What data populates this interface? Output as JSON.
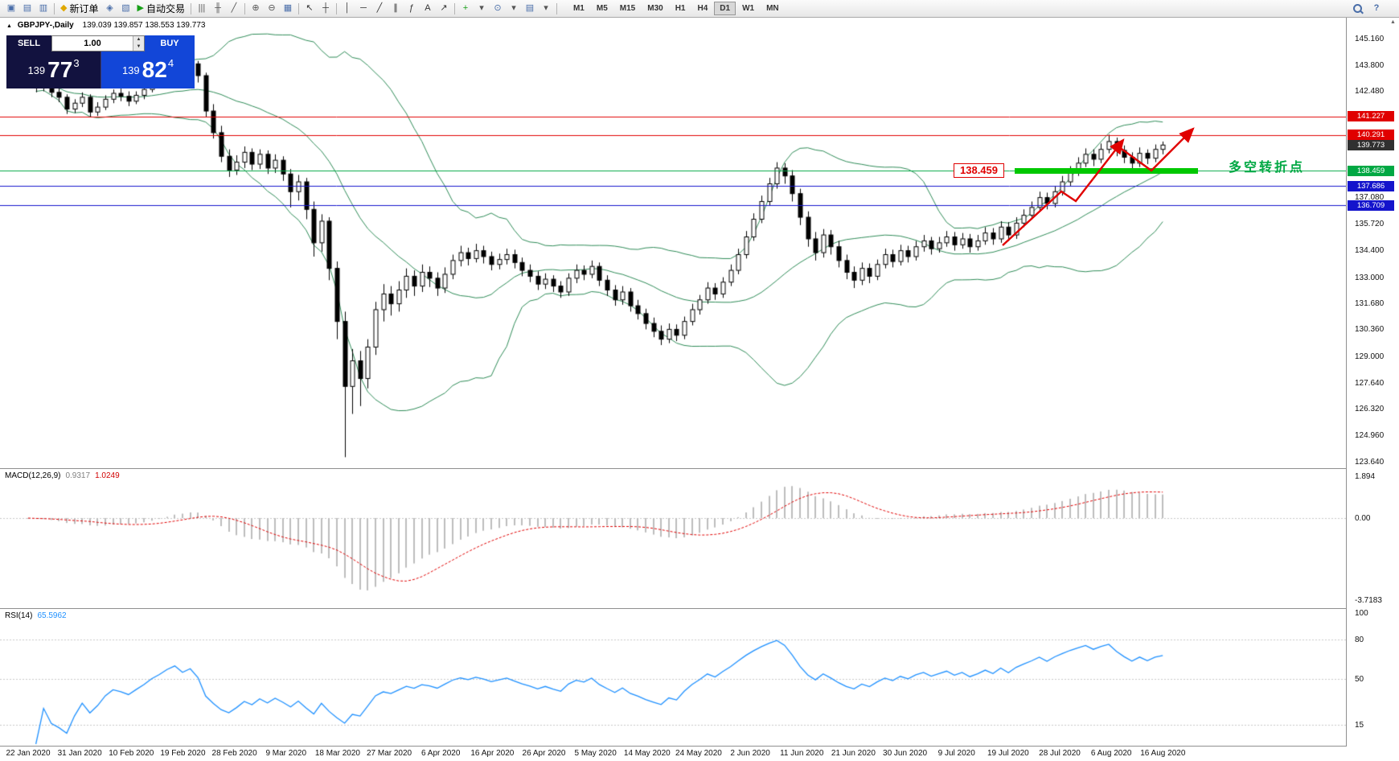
{
  "icons": {
    "collapse": "▲",
    "spin_up": "▲",
    "spin_down": "▼",
    "scroll_up": "▲"
  },
  "toolbar": {
    "items": [
      {
        "name": "new-chart-icon",
        "glyph": "▣",
        "color": "#4a6ea9"
      },
      {
        "name": "profiles-icon",
        "glyph": "▤",
        "color": "#4a6ea9"
      },
      {
        "name": "market-watch-icon",
        "glyph": "▥",
        "color": "#4a6ea9"
      },
      {
        "sep": true
      },
      {
        "name": "new-order-button",
        "glyph": "◆",
        "color": "#e0a800",
        "label": "新订单"
      },
      {
        "name": "chart-window-icon",
        "glyph": "◈",
        "color": "#4a6ea9"
      },
      {
        "name": "terminal-icon",
        "glyph": "▧",
        "color": "#4a6ea9"
      },
      {
        "name": "autotrading-button",
        "glyph": "▶",
        "color": "#18a018",
        "label": "自动交易"
      },
      {
        "sep": true
      },
      {
        "name": "bar-chart-icon",
        "glyph": "|||",
        "color": "#555555"
      },
      {
        "name": "candlestick-chart-icon",
        "glyph": "╫",
        "color": "#555555"
      },
      {
        "name": "line-chart-icon",
        "glyph": "╱",
        "color": "#555555"
      },
      {
        "sep": true
      },
      {
        "name": "zoom-in-icon",
        "glyph": "⊕",
        "color": "#555555"
      },
      {
        "name": "zoom-out-icon",
        "glyph": "⊖",
        "color": "#555555"
      },
      {
        "name": "tile-windows-icon",
        "glyph": "▦",
        "color": "#4a6ea9"
      },
      {
        "sep": true
      },
      {
        "name": "cursor-icon",
        "glyph": "↖",
        "color": "#333333"
      },
      {
        "name": "crosshair-icon",
        "glyph": "┼",
        "color": "#333333"
      },
      {
        "sep": true
      },
      {
        "name": "vertical-line-icon",
        "glyph": "│",
        "color": "#333333"
      },
      {
        "name": "horizontal-line-icon",
        "glyph": "─",
        "color": "#333333"
      },
      {
        "name": "trendline-icon",
        "glyph": "╱",
        "color": "#333333"
      },
      {
        "name": "equidistant-channel-icon",
        "glyph": "∥",
        "color": "#333333"
      },
      {
        "name": "fibonacci-icon",
        "glyph": "ƒ",
        "color": "#333333"
      },
      {
        "name": "text-label-icon",
        "glyph": "A",
        "color": "#333333"
      },
      {
        "name": "arrows-objects-icon",
        "glyph": "↗",
        "color": "#333333"
      },
      {
        "sep": true
      },
      {
        "name": "indicators-icon",
        "glyph": "+",
        "color": "#18a018"
      },
      {
        "name": "indicators-dropdown-icon",
        "glyph": "▾",
        "color": "#555555"
      },
      {
        "name": "periods-icon",
        "glyph": "⊙",
        "color": "#4a6ea9"
      },
      {
        "name": "periods-dropdown-icon",
        "glyph": "▾",
        "color": "#555555"
      },
      {
        "name": "templates-icon",
        "glyph": "▤",
        "color": "#4a6ea9"
      },
      {
        "name": "templates-dropdown-icon",
        "glyph": "▾",
        "color": "#555555"
      },
      {
        "sep": true
      }
    ],
    "timeframes": [
      "M1",
      "M5",
      "M15",
      "M30",
      "H1",
      "H4",
      "D1",
      "W1",
      "MN"
    ],
    "active_timeframe": "D1",
    "right_items": [
      {
        "name": "search-button",
        "icon": "mag"
      },
      {
        "name": "help-button",
        "glyph": "?",
        "color": "#4a6ea9"
      }
    ]
  },
  "chart": {
    "symbol_title": "GBPJPY-,Daily",
    "ohlc_line": "139.039 139.857 138.553 139.773"
  },
  "trade": {
    "sell_label": "SELL",
    "buy_label": "BUY",
    "volume": "1.00",
    "sell_prefix": "139",
    "sell_big": "77",
    "sell_sup": "3",
    "buy_prefix": "139",
    "buy_big": "82",
    "buy_sup": "4"
  },
  "levels": [
    {
      "label": "141.227",
      "price": 141.227,
      "line": "solid",
      "color": "#E00000",
      "tag_bg": "#E00000"
    },
    {
      "label": "140.291",
      "price": 140.291,
      "line": "solid",
      "color": "#E00000",
      "tag_bg": "#E00000"
    },
    {
      "label": "139.773",
      "price": 139.773,
      "line": "none",
      "color": "#303030",
      "tag_bg": "#303030"
    },
    {
      "label": "138.459",
      "price": 138.459,
      "line": "solid",
      "color": "#00A843",
      "tag_bg": "#00A843"
    },
    {
      "label": "137.686",
      "price": 137.686,
      "line": "solid",
      "color": "#1414CC",
      "tag_bg": "#1414CC"
    },
    {
      "label": "136.709",
      "price": 136.709,
      "line": "solid",
      "color": "#1414CC",
      "tag_bg": "#1414CC"
    }
  ],
  "annotations": {
    "callout": "138.459",
    "turning_point": "多空转折点",
    "turning_point_color": "#00A843",
    "zone_color": "#00C800",
    "arrow_color": "#E00000"
  },
  "axis": {
    "price_ticks": [
      "145.160",
      "143.800",
      "142.480",
      "137.080",
      "135.720",
      "134.400",
      "133.000",
      "131.680",
      "130.360",
      "129.000",
      "127.640",
      "126.320",
      "124.960",
      "123.640"
    ],
    "dates": [
      "22 Jan 2020",
      "31 Jan 2020",
      "10 Feb 2020",
      "19 Feb 2020",
      "28 Feb 2020",
      "9 Mar 2020",
      "18 Mar 2020",
      "27 Mar 2020",
      "6 Apr 2020",
      "16 Apr 2020",
      "26 Apr 2020",
      "5 May 2020",
      "14 May 2020",
      "24 May 2020",
      "2 Jun 2020",
      "11 Jun 2020",
      "21 Jun 2020",
      "30 Jun 2020",
      "9 Jul 2020",
      "19 Jul 2020",
      "28 Jul 2020",
      "6 Aug 2020",
      "16 Aug 2020"
    ]
  },
  "macd": {
    "name": "MACD(12,26,9)",
    "value_main": "0.9317",
    "value_signal": "1.0249",
    "ticks": [
      "1.894",
      "0.00",
      "-3.7183"
    ],
    "histogram_color": "#BDBDBD",
    "signal_color": "#E00000"
  },
  "rsi": {
    "name": "RSI(14)",
    "value": "65.5962",
    "ticks": [
      "100",
      "80",
      "50",
      "15"
    ],
    "line_color": "#1E90FF"
  },
  "chart_data": {
    "type": "candlestick",
    "symbol": "GBPJPY-",
    "period": "Daily",
    "indicators": [
      "Bollinger Bands(20,2)",
      "MACD(12,26,9)",
      "RSI(14)"
    ],
    "bollinger_color": "#2E8B57",
    "ylim": [
      123.3,
      146.0
    ],
    "candles": [
      [
        143.4,
        143.65,
        142.85,
        143.1
      ],
      [
        143.1,
        143.25,
        142.45,
        142.7
      ],
      [
        142.7,
        143.05,
        142.5,
        142.85
      ],
      [
        142.85,
        142.95,
        142.2,
        142.45
      ],
      [
        142.45,
        142.7,
        141.95,
        142.2
      ],
      [
        142.2,
        142.35,
        141.35,
        141.6
      ],
      [
        141.6,
        142.1,
        141.4,
        141.9
      ],
      [
        141.9,
        142.45,
        141.7,
        142.2
      ],
      [
        142.2,
        142.35,
        141.2,
        141.45
      ],
      [
        141.45,
        141.95,
        141.25,
        141.7
      ],
      [
        141.7,
        142.3,
        141.55,
        142.1
      ],
      [
        142.1,
        142.6,
        141.9,
        142.4
      ],
      [
        142.4,
        142.65,
        142.0,
        142.25
      ],
      [
        142.25,
        142.5,
        141.75,
        142.0
      ],
      [
        142.0,
        142.5,
        141.85,
        142.3
      ],
      [
        142.3,
        142.8,
        142.1,
        142.6
      ],
      [
        142.6,
        143.2,
        142.45,
        143.0
      ],
      [
        143.0,
        143.55,
        142.8,
        143.3
      ],
      [
        143.3,
        143.9,
        143.1,
        143.7
      ],
      [
        143.7,
        144.25,
        143.45,
        144.0
      ],
      [
        144.0,
        144.3,
        143.35,
        143.6
      ],
      [
        143.6,
        144.15,
        143.4,
        143.9
      ],
      [
        143.9,
        144.05,
        142.95,
        143.3
      ],
      [
        143.3,
        143.45,
        141.2,
        141.5
      ],
      [
        141.5,
        141.85,
        140.1,
        140.4
      ],
      [
        140.4,
        140.75,
        138.9,
        139.2
      ],
      [
        139.2,
        139.55,
        138.15,
        138.5
      ],
      [
        138.5,
        139.25,
        138.25,
        138.9
      ],
      [
        138.9,
        139.7,
        138.6,
        139.4
      ],
      [
        139.4,
        139.6,
        138.5,
        138.8
      ],
      [
        138.8,
        139.55,
        138.55,
        139.3
      ],
      [
        139.3,
        139.5,
        138.3,
        138.6
      ],
      [
        138.6,
        139.3,
        138.35,
        139.0
      ],
      [
        139.0,
        139.2,
        137.95,
        138.3
      ],
      [
        138.3,
        138.55,
        136.6,
        137.4
      ],
      [
        137.4,
        138.25,
        136.95,
        137.9
      ],
      [
        137.9,
        138.1,
        136.0,
        136.5
      ],
      [
        136.5,
        136.9,
        134.1,
        134.8
      ],
      [
        134.8,
        136.25,
        134.35,
        135.9
      ],
      [
        135.9,
        136.1,
        132.9,
        133.5
      ],
      [
        133.5,
        133.85,
        129.9,
        130.8
      ],
      [
        130.8,
        131.3,
        123.9,
        127.5
      ],
      [
        127.5,
        129.4,
        126.1,
        128.8
      ],
      [
        128.8,
        129.3,
        126.5,
        127.9
      ],
      [
        127.9,
        129.9,
        127.4,
        129.5
      ],
      [
        129.5,
        131.8,
        129.1,
        131.4
      ],
      [
        131.4,
        132.7,
        130.8,
        132.2
      ],
      [
        132.2,
        132.6,
        131.1,
        131.7
      ],
      [
        131.7,
        132.85,
        131.3,
        132.4
      ],
      [
        132.4,
        133.5,
        132.0,
        133.1
      ],
      [
        133.1,
        133.4,
        132.1,
        132.6
      ],
      [
        132.6,
        133.7,
        132.3,
        133.3
      ],
      [
        133.3,
        133.6,
        132.55,
        133.0
      ],
      [
        133.0,
        133.3,
        132.1,
        132.5
      ],
      [
        132.5,
        133.55,
        132.25,
        133.2
      ],
      [
        133.2,
        134.2,
        132.95,
        133.9
      ],
      [
        133.9,
        134.65,
        133.6,
        134.3
      ],
      [
        134.3,
        134.55,
        133.65,
        134.0
      ],
      [
        134.0,
        134.75,
        133.8,
        134.4
      ],
      [
        134.4,
        134.65,
        133.75,
        134.1
      ],
      [
        134.1,
        134.35,
        133.4,
        133.7
      ],
      [
        133.7,
        134.25,
        133.45,
        133.95
      ],
      [
        133.95,
        134.5,
        133.7,
        134.2
      ],
      [
        134.2,
        134.45,
        133.5,
        133.8
      ],
      [
        133.8,
        134.05,
        133.1,
        133.4
      ],
      [
        133.4,
        133.7,
        132.8,
        133.1
      ],
      [
        133.1,
        133.35,
        132.4,
        132.7
      ],
      [
        132.7,
        133.25,
        132.45,
        132.95
      ],
      [
        132.95,
        133.15,
        132.3,
        132.6
      ],
      [
        132.6,
        132.85,
        132.0,
        132.3
      ],
      [
        132.3,
        133.25,
        132.1,
        133.0
      ],
      [
        133.0,
        133.7,
        132.75,
        133.4
      ],
      [
        133.4,
        133.65,
        132.9,
        133.2
      ],
      [
        133.2,
        133.9,
        133.0,
        133.6
      ],
      [
        133.6,
        133.8,
        132.6,
        132.9
      ],
      [
        132.9,
        133.15,
        132.1,
        132.4
      ],
      [
        132.4,
        132.65,
        131.6,
        131.9
      ],
      [
        131.9,
        132.6,
        131.65,
        132.3
      ],
      [
        132.3,
        132.5,
        131.3,
        131.6
      ],
      [
        131.6,
        131.9,
        130.9,
        131.2
      ],
      [
        131.2,
        131.45,
        130.4,
        130.7
      ],
      [
        130.7,
        131.0,
        130.0,
        130.3
      ],
      [
        130.3,
        130.6,
        129.6,
        129.9
      ],
      [
        129.9,
        130.7,
        129.7,
        130.4
      ],
      [
        130.4,
        130.65,
        129.8,
        130.1
      ],
      [
        130.1,
        131.05,
        129.9,
        130.8
      ],
      [
        130.8,
        131.7,
        130.6,
        131.4
      ],
      [
        131.4,
        132.15,
        131.15,
        131.9
      ],
      [
        131.9,
        132.8,
        131.7,
        132.5
      ],
      [
        132.5,
        132.75,
        131.9,
        132.2
      ],
      [
        132.2,
        133.05,
        132.0,
        132.8
      ],
      [
        132.8,
        133.7,
        132.6,
        133.4
      ],
      [
        133.4,
        134.5,
        133.2,
        134.2
      ],
      [
        134.2,
        135.4,
        134.0,
        135.1
      ],
      [
        135.1,
        136.3,
        134.9,
        136.0
      ],
      [
        136.0,
        137.2,
        135.8,
        136.9
      ],
      [
        136.9,
        138.1,
        136.7,
        137.8
      ],
      [
        137.8,
        138.9,
        137.55,
        138.6
      ],
      [
        138.6,
        138.85,
        137.8,
        138.2
      ],
      [
        138.2,
        138.5,
        136.9,
        137.3
      ],
      [
        137.3,
        137.55,
        135.7,
        136.1
      ],
      [
        136.1,
        136.4,
        134.6,
        135.0
      ],
      [
        135.0,
        135.35,
        133.9,
        134.3
      ],
      [
        134.3,
        135.5,
        134.05,
        135.2
      ],
      [
        135.2,
        135.45,
        134.2,
        134.6
      ],
      [
        134.6,
        134.9,
        133.55,
        133.9
      ],
      [
        133.9,
        134.2,
        132.95,
        133.3
      ],
      [
        133.3,
        133.6,
        132.5,
        132.9
      ],
      [
        132.9,
        133.8,
        132.65,
        133.5
      ],
      [
        133.5,
        133.75,
        132.75,
        133.1
      ],
      [
        133.1,
        133.95,
        132.9,
        133.7
      ],
      [
        133.7,
        134.5,
        133.5,
        134.2
      ],
      [
        134.2,
        134.45,
        133.55,
        133.85
      ],
      [
        133.85,
        134.7,
        133.65,
        134.4
      ],
      [
        134.4,
        134.65,
        133.8,
        134.1
      ],
      [
        134.1,
        134.9,
        133.9,
        134.6
      ],
      [
        134.6,
        135.2,
        134.35,
        134.9
      ],
      [
        134.9,
        135.1,
        134.2,
        134.5
      ],
      [
        134.5,
        135.1,
        134.3,
        134.8
      ],
      [
        134.8,
        135.4,
        134.6,
        135.1
      ],
      [
        135.1,
        135.35,
        134.4,
        134.7
      ],
      [
        134.7,
        135.3,
        134.5,
        135.0
      ],
      [
        135.0,
        135.25,
        134.3,
        134.6
      ],
      [
        134.6,
        135.2,
        134.4,
        134.9
      ],
      [
        134.9,
        135.6,
        134.7,
        135.3
      ],
      [
        135.3,
        135.55,
        134.7,
        135.0
      ],
      [
        135.0,
        135.9,
        134.8,
        135.6
      ],
      [
        135.6,
        135.85,
        134.9,
        135.2
      ],
      [
        135.2,
        136.1,
        135.0,
        135.8
      ],
      [
        135.8,
        136.5,
        135.6,
        136.2
      ],
      [
        136.2,
        136.9,
        136.0,
        136.6
      ],
      [
        136.6,
        137.4,
        136.4,
        137.1
      ],
      [
        137.1,
        137.35,
        136.5,
        136.8
      ],
      [
        136.8,
        137.7,
        136.6,
        137.4
      ],
      [
        137.4,
        138.2,
        137.2,
        137.9
      ],
      [
        137.9,
        138.7,
        137.7,
        138.4
      ],
      [
        138.4,
        139.15,
        138.2,
        138.85
      ],
      [
        138.85,
        139.6,
        138.65,
        139.3
      ],
      [
        139.3,
        139.55,
        138.7,
        139.05
      ],
      [
        139.05,
        139.85,
        138.85,
        139.55
      ],
      [
        139.55,
        140.3,
        139.35,
        139.95
      ],
      [
        139.95,
        140.15,
        139.2,
        139.5
      ],
      [
        139.5,
        139.75,
        138.85,
        139.15
      ],
      [
        139.15,
        139.4,
        138.45,
        138.85
      ],
      [
        138.85,
        139.65,
        138.65,
        139.35
      ],
      [
        139.35,
        139.55,
        138.8,
        139.1
      ],
      [
        139.1,
        139.8,
        138.9,
        139.55
      ],
      [
        139.55,
        139.95,
        139.3,
        139.77
      ]
    ]
  }
}
